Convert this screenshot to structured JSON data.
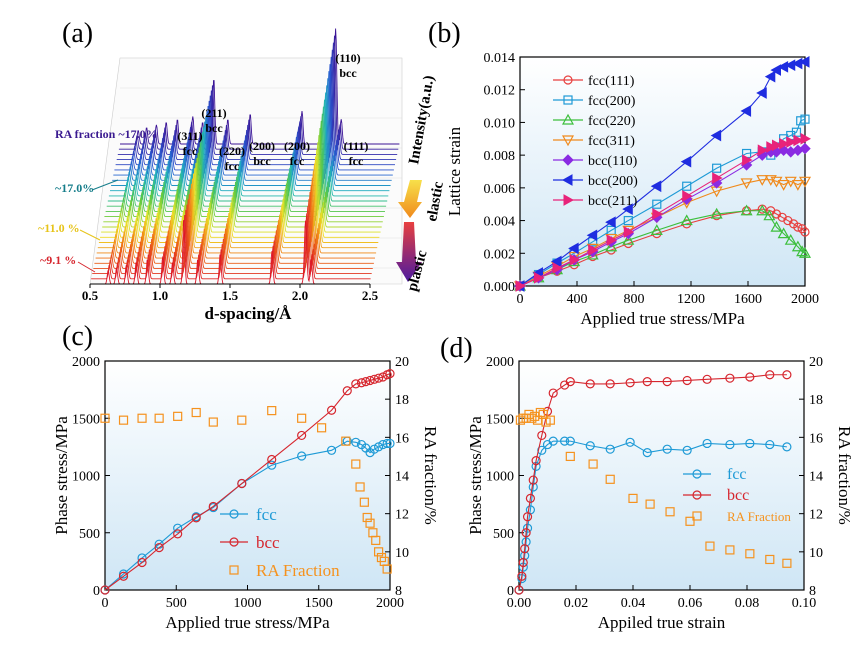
{
  "colors": {
    "fcc": "#1e9ad6",
    "bcc": "#d6262e",
    "ra": "#f5921e",
    "bg_grad_top": "#ffffff",
    "bg_grad_bottom": "#cfe6f5"
  },
  "chart_data": [
    {
      "panel": "(a)",
      "type": "line",
      "xlabel": "d-spacing/Å",
      "zlabel": "Intensity(a.u.)",
      "xticks": [
        "0.5",
        "1.0",
        "1.5",
        "2.0",
        "2.5"
      ],
      "xlim": [
        0.5,
        2.5
      ],
      "peak_labels": [
        {
          "hkl": "(110)",
          "phase": "bcc",
          "d": 2.03
        },
        {
          "hkl": "(111)",
          "phase": "fcc",
          "d": 2.08
        },
        {
          "hkl": "(200)",
          "phase": "fcc",
          "d": 1.8
        },
        {
          "hkl": "(200)",
          "phase": "bcc",
          "d": 1.43
        },
        {
          "hkl": "(220)",
          "phase": "fcc",
          "d": 1.27
        },
        {
          "hkl": "(211)",
          "phase": "bcc",
          "d": 1.17
        },
        {
          "hkl": "(311)",
          "phase": "fcc",
          "d": 1.09
        }
      ],
      "annotations": [
        "RA fraction ~17.0%",
        "~17.0%",
        "~11.0 %",
        "~9.1 %",
        "elastic",
        "plastic"
      ]
    },
    {
      "panel": "(b)",
      "type": "line",
      "xlabel": "Applied true stress/MPa",
      "ylabel": "Lattice strain",
      "xlim": [
        0,
        2000
      ],
      "ylim": [
        0,
        0.014
      ],
      "xticks": [
        "0",
        "400",
        "800",
        "1200",
        "1600",
        "2000"
      ],
      "yticks": [
        "0.000",
        "0.002",
        "0.004",
        "0.006",
        "0.008",
        "0.010",
        "0.012",
        "0.014"
      ],
      "series": [
        {
          "name": "fcc(111)",
          "color": "#e8403f",
          "marker": "circle-open",
          "x": [
            0,
            130,
            260,
            380,
            510,
            640,
            760,
            960,
            1170,
            1380,
            1590,
            1700,
            1760,
            1800,
            1840,
            1880,
            1920,
            1950,
            1980,
            2000
          ],
          "y": [
            0,
            0.0005,
            0.0009,
            0.0013,
            0.0018,
            0.0022,
            0.0026,
            0.0032,
            0.0038,
            0.0043,
            0.0046,
            0.0047,
            0.0046,
            0.0044,
            0.0042,
            0.004,
            0.0038,
            0.0036,
            0.0035,
            0.0033
          ]
        },
        {
          "name": "fcc(200)",
          "color": "#1e9ad6",
          "marker": "square-open",
          "x": [
            0,
            130,
            260,
            380,
            510,
            640,
            760,
            960,
            1170,
            1380,
            1590,
            1700,
            1760,
            1800,
            1850,
            1900,
            1940,
            1970,
            2000
          ],
          "y": [
            0,
            0.0007,
            0.0014,
            0.002,
            0.0027,
            0.0034,
            0.004,
            0.005,
            0.0061,
            0.0072,
            0.0081,
            0.0082,
            0.008,
            0.0085,
            0.009,
            0.0092,
            0.0094,
            0.0101,
            0.0102
          ]
        },
        {
          "name": "fcc(220)",
          "color": "#3cbf3c",
          "marker": "triangle-up-open",
          "x": [
            0,
            130,
            260,
            380,
            510,
            640,
            760,
            960,
            1170,
            1380,
            1590,
            1700,
            1750,
            1800,
            1850,
            1900,
            1950,
            1980,
            2000
          ],
          "y": [
            0,
            0.0005,
            0.001,
            0.0015,
            0.0019,
            0.0024,
            0.0028,
            0.0034,
            0.004,
            0.0044,
            0.0046,
            0.0046,
            0.0043,
            0.0036,
            0.0032,
            0.0028,
            0.0024,
            0.0021,
            0.002
          ]
        },
        {
          "name": "fcc(311)",
          "color": "#f08a1c",
          "marker": "triangle-down-open",
          "x": [
            0,
            130,
            260,
            380,
            510,
            640,
            760,
            960,
            1170,
            1380,
            1590,
            1700,
            1760,
            1800,
            1850,
            1900,
            1950,
            2000
          ],
          "y": [
            0,
            0.0006,
            0.0012,
            0.0018,
            0.0023,
            0.0029,
            0.0034,
            0.0042,
            0.0051,
            0.0058,
            0.0063,
            0.0065,
            0.0065,
            0.0064,
            0.0062,
            0.0064,
            0.0062,
            0.0064
          ]
        },
        {
          "name": "bcc(110)",
          "color": "#8a2be2",
          "marker": "diamond",
          "x": [
            0,
            130,
            260,
            380,
            510,
            640,
            760,
            960,
            1170,
            1380,
            1590,
            1700,
            1760,
            1800,
            1850,
            1900,
            1950,
            2000
          ],
          "y": [
            0,
            0.0005,
            0.001,
            0.0016,
            0.0021,
            0.0027,
            0.0032,
            0.0042,
            0.0053,
            0.0063,
            0.0074,
            0.008,
            0.0082,
            0.0082,
            0.0083,
            0.0082,
            0.0083,
            0.0084
          ]
        },
        {
          "name": "bcc(200)",
          "color": "#1f2de0",
          "marker": "triangle-left",
          "x": [
            0,
            130,
            260,
            380,
            510,
            640,
            760,
            960,
            1170,
            1380,
            1590,
            1700,
            1760,
            1800,
            1850,
            1900,
            1950,
            2000
          ],
          "y": [
            0,
            0.0008,
            0.0015,
            0.0023,
            0.0031,
            0.0039,
            0.0047,
            0.0061,
            0.0076,
            0.0092,
            0.0107,
            0.0118,
            0.0128,
            0.0132,
            0.0134,
            0.0135,
            0.0136,
            0.0137
          ]
        },
        {
          "name": "bcc(211)",
          "color": "#e8237a",
          "marker": "triangle-right",
          "x": [
            0,
            130,
            260,
            380,
            510,
            640,
            760,
            960,
            1170,
            1380,
            1590,
            1700,
            1760,
            1800,
            1850,
            1900,
            1950,
            2000
          ],
          "y": [
            0,
            0.0005,
            0.0011,
            0.0016,
            0.0022,
            0.0028,
            0.0033,
            0.0044,
            0.0055,
            0.0066,
            0.0077,
            0.0083,
            0.0085,
            0.0086,
            0.0087,
            0.0088,
            0.0089,
            0.009
          ]
        }
      ]
    },
    {
      "panel": "(c)",
      "type": "line",
      "xlabel": "Applied true stress/MPa",
      "ylabel": "Phase stress/MPa",
      "y2label": "RA fraction/%",
      "xlim": [
        0,
        2000
      ],
      "ylim": [
        0,
        2000
      ],
      "y2lim": [
        8,
        20
      ],
      "xticks": [
        "0",
        "500",
        "1000",
        "1500",
        "2000"
      ],
      "yticks": [
        "0",
        "500",
        "1000",
        "1500",
        "2000"
      ],
      "y2ticks": [
        "8",
        "10",
        "12",
        "14",
        "16",
        "18",
        "20"
      ],
      "series": [
        {
          "name": "fcc",
          "color": "#1e9ad6",
          "axis": "left",
          "marker": "circle-open",
          "x": [
            0,
            130,
            260,
            380,
            510,
            640,
            760,
            960,
            1170,
            1380,
            1590,
            1700,
            1760,
            1800,
            1830,
            1860,
            1890,
            1920,
            1950,
            1980,
            2000
          ],
          "y": [
            0,
            140,
            280,
            400,
            540,
            640,
            720,
            930,
            1090,
            1170,
            1220,
            1300,
            1290,
            1270,
            1240,
            1200,
            1230,
            1250,
            1270,
            1280,
            1280
          ]
        },
        {
          "name": "bcc",
          "color": "#d6262e",
          "axis": "left",
          "marker": "circle-open",
          "x": [
            0,
            130,
            260,
            380,
            510,
            640,
            760,
            960,
            1170,
            1380,
            1590,
            1700,
            1760,
            1800,
            1830,
            1860,
            1890,
            1920,
            1950,
            1980,
            2000
          ],
          "y": [
            0,
            120,
            240,
            370,
            490,
            630,
            730,
            930,
            1140,
            1350,
            1570,
            1740,
            1800,
            1810,
            1820,
            1830,
            1840,
            1850,
            1860,
            1880,
            1890
          ]
        },
        {
          "name": "RA Fraction",
          "color": "#f5921e",
          "axis": "right",
          "marker": "square-open",
          "x": [
            0,
            130,
            260,
            380,
            510,
            640,
            760,
            960,
            1170,
            1380,
            1520,
            1690,
            1760,
            1790,
            1820,
            1840,
            1860,
            1880,
            1900,
            1920,
            1940,
            1960,
            1980
          ],
          "y": [
            17.0,
            16.9,
            17.0,
            17.0,
            17.1,
            17.3,
            16.8,
            16.9,
            17.4,
            17.0,
            16.5,
            15.8,
            14.6,
            13.4,
            12.6,
            11.8,
            11.5,
            11.0,
            10.6,
            10.0,
            9.7,
            9.5,
            9.1
          ]
        }
      ]
    },
    {
      "panel": "(d)",
      "type": "line",
      "xlabel": "Appiled true strain",
      "ylabel": "Phase stress/MPa",
      "y2label": "RA fraction/%",
      "xlim": [
        0,
        0.1
      ],
      "ylim": [
        0,
        2000
      ],
      "y2lim": [
        8,
        20
      ],
      "xticks": [
        "0.00",
        "0.02",
        "0.04",
        "0.06",
        "0.08",
        "0.10"
      ],
      "yticks": [
        "0",
        "500",
        "1000",
        "1500",
        "2000"
      ],
      "y2ticks": [
        "8",
        "10",
        "12",
        "14",
        "16",
        "18",
        "20"
      ],
      "series": [
        {
          "name": "fcc",
          "color": "#1e9ad6",
          "axis": "left",
          "marker": "circle-open",
          "x": [
            0,
            0.001,
            0.0015,
            0.002,
            0.0025,
            0.003,
            0.004,
            0.005,
            0.006,
            0.008,
            0.01,
            0.012,
            0.016,
            0.018,
            0.025,
            0.032,
            0.039,
            0.045,
            0.052,
            0.059,
            0.066,
            0.074,
            0.081,
            0.088,
            0.094
          ],
          "y": [
            0,
            100,
            200,
            300,
            420,
            540,
            700,
            900,
            1080,
            1220,
            1270,
            1300,
            1300,
            1300,
            1260,
            1230,
            1290,
            1200,
            1230,
            1220,
            1280,
            1270,
            1280,
            1270,
            1250
          ]
        },
        {
          "name": "bcc",
          "color": "#d6262e",
          "axis": "left",
          "marker": "circle-open",
          "x": [
            0,
            0.001,
            0.0015,
            0.002,
            0.0025,
            0.003,
            0.004,
            0.005,
            0.006,
            0.008,
            0.01,
            0.012,
            0.016,
            0.018,
            0.025,
            0.032,
            0.039,
            0.045,
            0.052,
            0.059,
            0.066,
            0.074,
            0.081,
            0.088,
            0.094
          ],
          "y": [
            0,
            120,
            240,
            360,
            500,
            640,
            800,
            960,
            1130,
            1350,
            1560,
            1720,
            1790,
            1820,
            1800,
            1800,
            1810,
            1820,
            1820,
            1830,
            1840,
            1850,
            1860,
            1880,
            1880
          ]
        },
        {
          "name": "RA Fraction",
          "color": "#f5921e",
          "axis": "right",
          "marker": "square-open",
          "legend_label": "RA Fraction",
          "x": [
            0.0005,
            0.0015,
            0.0025,
            0.0035,
            0.0045,
            0.0055,
            0.0065,
            0.0075,
            0.0085,
            0.0095,
            0.011,
            0.018,
            0.026,
            0.032,
            0.04,
            0.046,
            0.053,
            0.06,
            0.067,
            0.074,
            0.081,
            0.088,
            0.094
          ],
          "y": [
            16.9,
            17.0,
            17.0,
            17.2,
            17.0,
            17.1,
            16.9,
            17.3,
            17.2,
            16.8,
            16.9,
            15.0,
            14.6,
            13.8,
            12.8,
            12.5,
            12.1,
            11.6,
            10.3,
            10.1,
            9.9,
            9.6,
            9.4
          ]
        }
      ]
    }
  ],
  "legend_c": {
    "fcc": "fcc",
    "bcc": "bcc",
    "ra": "RA Fraction"
  },
  "legend_d": {
    "fcc": "fcc",
    "bcc": "bcc",
    "ra": "RA Fraction"
  }
}
